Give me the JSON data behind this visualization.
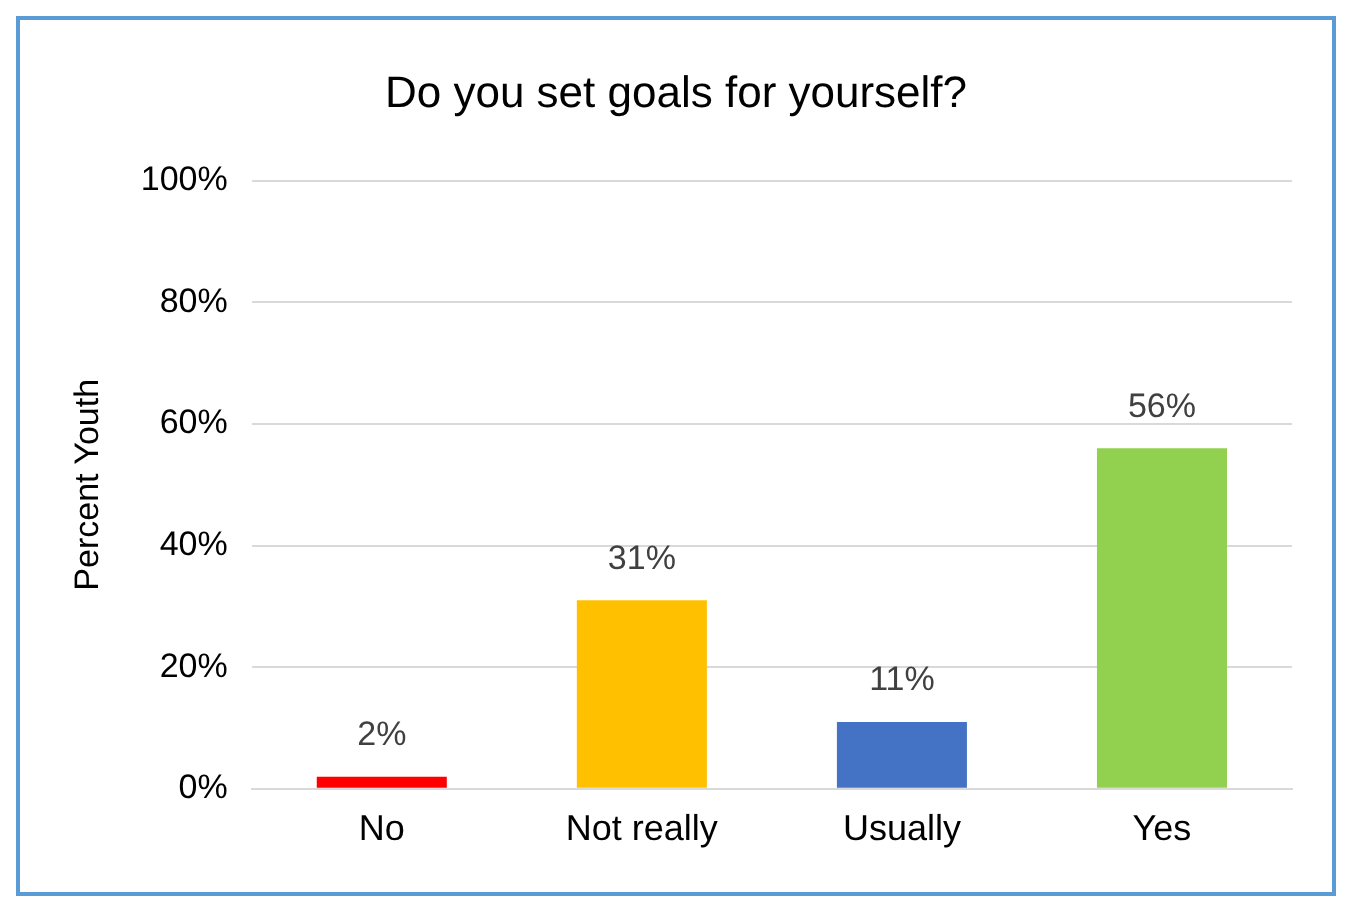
{
  "chart_data": {
    "type": "bar",
    "title": "Do you set goals for yourself?",
    "ylabel": "Percent Youth",
    "categories": [
      "No",
      "Not really",
      "Usually",
      "Yes"
    ],
    "values": [
      2,
      31,
      11,
      56
    ],
    "value_labels": [
      "2%",
      "31%",
      "11%",
      "56%"
    ],
    "colors": [
      "#ff0000",
      "#ffc000",
      "#4472c4",
      "#92d050"
    ],
    "ylim": [
      0,
      100
    ],
    "yticks": [
      {
        "value": 0,
        "label": "0%"
      },
      {
        "value": 20,
        "label": "20%"
      },
      {
        "value": 40,
        "label": "40%"
      },
      {
        "value": 60,
        "label": "60%"
      },
      {
        "value": 80,
        "label": "80%"
      },
      {
        "value": 100,
        "label": "100%"
      }
    ],
    "grid": "y"
  }
}
